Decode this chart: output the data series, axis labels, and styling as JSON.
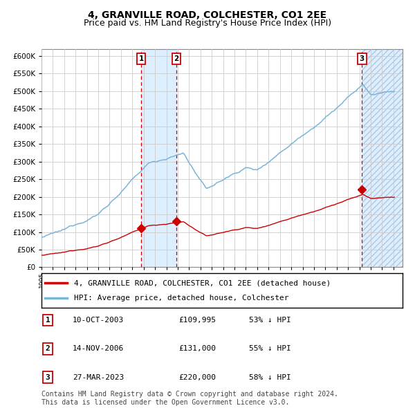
{
  "title": "4, GRANVILLE ROAD, COLCHESTER, CO1 2EE",
  "subtitle": "Price paid vs. HM Land Registry's House Price Index (HPI)",
  "ylim": [
    0,
    620000
  ],
  "xlim_start": 1995.0,
  "xlim_end": 2026.8,
  "sale_dates": [
    2003.78,
    2006.87,
    2023.23
  ],
  "sale_prices": [
    109995,
    131000,
    220000
  ],
  "sale_labels": [
    "1",
    "2",
    "3"
  ],
  "shade_ranges": [
    [
      2003.78,
      2006.87
    ],
    [
      2023.23,
      2026.8
    ]
  ],
  "legend_line1": "4, GRANVILLE ROAD, COLCHESTER, CO1 2EE (detached house)",
  "legend_line2": "HPI: Average price, detached house, Colchester",
  "table_rows": [
    [
      "1",
      "10-OCT-2003",
      "£109,995",
      "53% ↓ HPI"
    ],
    [
      "2",
      "14-NOV-2006",
      "£131,000",
      "55% ↓ HPI"
    ],
    [
      "3",
      "27-MAR-2023",
      "£220,000",
      "58% ↓ HPI"
    ]
  ],
  "footnote": "Contains HM Land Registry data © Crown copyright and database right 2024.\nThis data is licensed under the Open Government Licence v3.0.",
  "hpi_color": "#7ab4d8",
  "sold_color": "#cc0000",
  "shade_color": "#ddeeff",
  "hatch_color": "#c8d8ee",
  "grid_color": "#cccccc",
  "bg_color": "#ffffff",
  "title_fontsize": 10,
  "subtitle_fontsize": 9,
  "axis_fontsize": 7,
  "legend_fontsize": 8,
  "table_fontsize": 8,
  "footnote_fontsize": 7
}
